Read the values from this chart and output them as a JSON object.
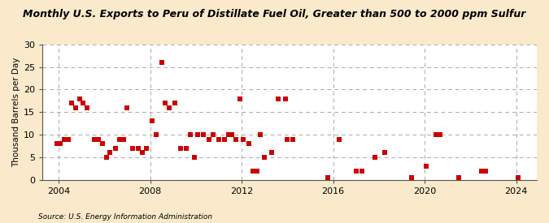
{
  "title": "Monthly U.S. Exports to Peru of Distillate Fuel Oil, Greater than 500 to 2000 ppm Sulfur",
  "ylabel": "Thousand Barrels per Day",
  "source": "Source: U.S. Energy Information Administration",
  "figure_bg": "#faeacb",
  "plot_bg": "#ffffff",
  "marker_color": "#cc0000",
  "xlim": [
    2003.3,
    2024.9
  ],
  "ylim": [
    0,
    30
  ],
  "yticks": [
    0,
    5,
    10,
    15,
    20,
    25,
    30
  ],
  "xticks": [
    2004,
    2008,
    2012,
    2016,
    2020,
    2024
  ],
  "points_x": [
    2003.92,
    2004.08,
    2004.25,
    2004.42,
    2004.58,
    2004.75,
    2004.92,
    2005.08,
    2005.25,
    2005.58,
    2005.75,
    2005.92,
    2006.08,
    2006.25,
    2006.5,
    2006.67,
    2006.83,
    2007.0,
    2007.25,
    2007.5,
    2007.67,
    2007.83,
    2008.08,
    2008.25,
    2008.5,
    2008.67,
    2008.83,
    2009.08,
    2009.33,
    2009.58,
    2009.75,
    2009.92,
    2010.08,
    2010.33,
    2010.58,
    2010.75,
    2011.0,
    2011.25,
    2011.42,
    2011.58,
    2011.75,
    2011.92,
    2012.08,
    2012.33,
    2012.5,
    2012.67,
    2012.83,
    2013.0,
    2013.33,
    2013.58,
    2013.92,
    2014.0,
    2014.25,
    2015.75,
    2016.25,
    2017.0,
    2017.25,
    2017.83,
    2018.25,
    2019.42,
    2020.08,
    2020.5,
    2020.67,
    2021.5,
    2022.5,
    2022.67,
    2024.08
  ],
  "points_y": [
    8,
    8,
    9,
    9,
    17,
    16,
    18,
    17,
    16,
    9,
    9,
    8,
    5,
    6,
    7,
    9,
    9,
    16,
    7,
    7,
    6,
    7,
    13,
    10,
    26,
    17,
    16,
    17,
    7,
    7,
    10,
    5,
    10,
    10,
    9,
    10,
    9,
    9,
    10,
    10,
    9,
    18,
    9,
    8,
    2,
    2,
    10,
    5,
    6,
    18,
    18,
    9,
    9,
    0.5,
    9,
    2,
    2,
    5,
    6,
    0.5,
    3,
    10,
    10,
    0.5,
    2,
    2,
    0.5
  ]
}
